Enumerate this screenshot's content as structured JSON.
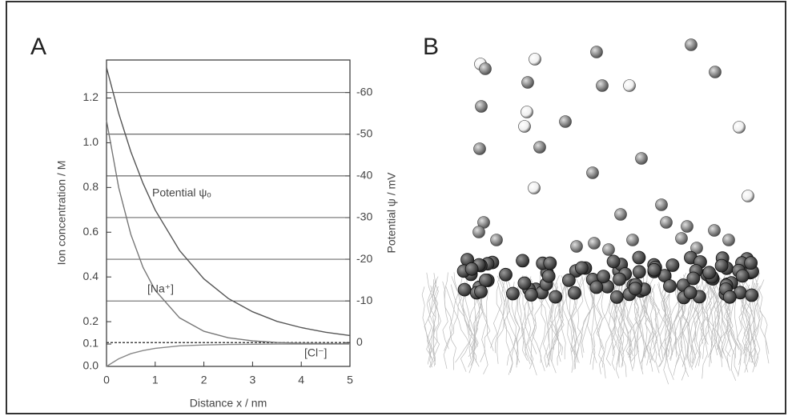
{
  "chart_data": {
    "type": "line",
    "panel_labels": [
      "A",
      "B"
    ],
    "x_label": "Distance x / nm",
    "y_label": "Ion concentration / M",
    "y2_label": "Potential ψ / mV",
    "x": [
      0,
      0.25,
      0.5,
      0.75,
      1,
      1.5,
      2,
      2.5,
      3,
      3.5,
      4,
      4.5,
      5
    ],
    "series": [
      {
        "name": "Potential ψₒ",
        "color": "#555555",
        "axis": "y2",
        "values": [
          -66,
          -55.0,
          -45.8,
          -38.2,
          -31.8,
          -22.1,
          -15.3,
          -10.6,
          -7.4,
          -5.1,
          -3.6,
          -2.5,
          -1.7
        ]
      },
      {
        "name": "[Na⁺]",
        "color": "#777777",
        "values": [
          1.1,
          0.8,
          0.59,
          0.443,
          0.34,
          0.217,
          0.157,
          0.128,
          0.114,
          0.107,
          0.103,
          0.102,
          0.101
        ]
      },
      {
        "name": "[Cl⁻]",
        "color": "#888888",
        "values": [
          0,
          0.034,
          0.057,
          0.071,
          0.081,
          0.092,
          0.096,
          0.098,
          0.099,
          0.1,
          0.1,
          0.1,
          0.1
        ]
      }
    ],
    "xlim": [
      0,
      5
    ],
    "xticks": [
      0,
      1,
      2,
      3,
      4,
      5
    ],
    "ylim": [
      0,
      1.37
    ],
    "yticks": [
      {
        "value": 0,
        "label": "0.0"
      },
      0.1,
      0.2,
      0.4,
      0.6,
      0.8,
      {
        "value": 1,
        "label": "1.0"
      },
      1.2
    ],
    "y2lim": [
      5.7,
      -67.8
    ],
    "y2ticks": [
      0,
      -10,
      -20,
      -30,
      -40,
      -50,
      -60
    ],
    "grid": true
  }
}
